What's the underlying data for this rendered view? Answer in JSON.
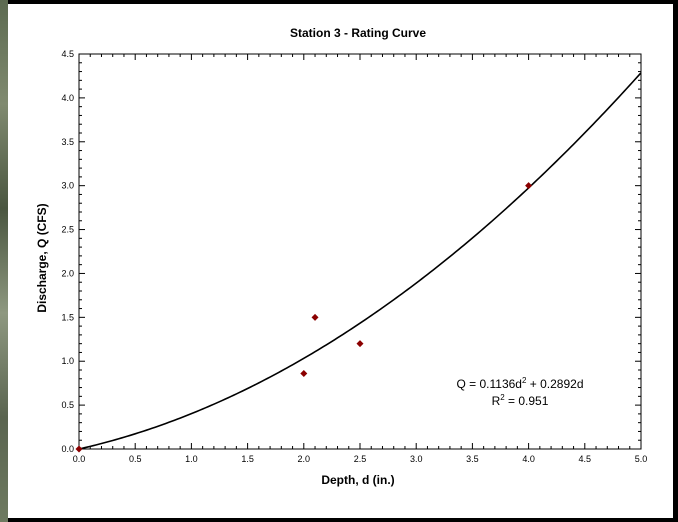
{
  "chart_data": {
    "type": "scatter",
    "title": "Station 3 - Rating Curve",
    "xlabel": "Depth, d (in.)",
    "ylabel": "Discharge, Q (CFS)",
    "xlim": [
      0,
      5
    ],
    "ylim": [
      0,
      4.5
    ],
    "x_ticks": [
      "0.0",
      "0.5",
      "1.0",
      "1.5",
      "2.0",
      "2.5",
      "3.0",
      "3.5",
      "4.0",
      "4.5",
      "5.0"
    ],
    "y_ticks": [
      "0.0",
      "0.5",
      "1.0",
      "1.5",
      "2.0",
      "2.5",
      "3.0",
      "3.5",
      "4.0",
      "4.5"
    ],
    "grid": false,
    "points": [
      {
        "x": 0.0,
        "y": 0.0
      },
      {
        "x": 2.0,
        "y": 0.86
      },
      {
        "x": 2.1,
        "y": 1.5
      },
      {
        "x": 2.5,
        "y": 1.2
      },
      {
        "x": 4.0,
        "y": 3.0
      }
    ],
    "point_color": "#8b0000",
    "trendline": {
      "type": "polynomial",
      "a": 0.1136,
      "b": 0.2892,
      "color": "#000000"
    },
    "equation": {
      "line1_prefix": "Q = 0.1136d",
      "line1_exp": "2",
      "line1_suffix": " + 0.2892d",
      "line2_prefix": "R",
      "line2_exp": "2",
      "line2_suffix": " = 0.951"
    }
  }
}
